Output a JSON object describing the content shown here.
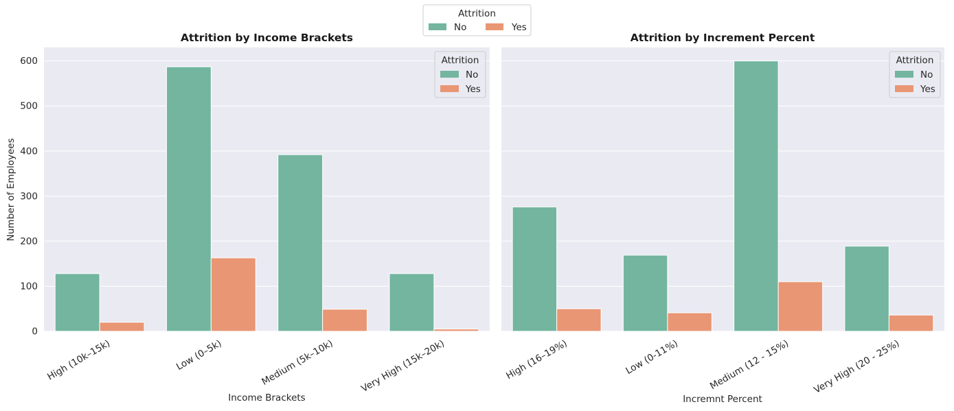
{
  "figure_legend": {
    "title": "Attrition",
    "entries": [
      "No",
      "Yes"
    ]
  },
  "colors": {
    "No": "#73b59f",
    "Yes": "#e99674",
    "plot_bg": "#eaeaf2",
    "grid": "#ffffff"
  },
  "chart_data": [
    {
      "type": "bar",
      "title": "Attrition by Income Brackets",
      "xlabel": "Income Brackets",
      "ylabel": "Number of Employees",
      "categories": [
        "High (10k–15k)",
        "Low (0–5k)",
        "Medium (5k–10k)",
        "Very High (15k–20k)"
      ],
      "series": [
        {
          "name": "No",
          "values": [
            128,
            587,
            392,
            128
          ]
        },
        {
          "name": "Yes",
          "values": [
            20,
            163,
            49,
            5
          ]
        }
      ],
      "ylim": [
        0,
        630
      ],
      "yticks": [
        0,
        100,
        200,
        300,
        400,
        500,
        600
      ],
      "grid": true,
      "legend": {
        "title": "Attrition",
        "placement": "top-right"
      }
    },
    {
      "type": "bar",
      "title": "Attrition by Increment Percent",
      "xlabel": "Incremnt Percent",
      "ylabel": "",
      "categories": [
        "High (16–19%)",
        "Low (0-11%)",
        "Medium (12 - 15%)",
        "Very High (20 - 25%)"
      ],
      "series": [
        {
          "name": "No",
          "values": [
            276,
            169,
            600,
            189
          ]
        },
        {
          "name": "Yes",
          "values": [
            50,
            41,
            110,
            36
          ]
        }
      ],
      "ylim": [
        0,
        630
      ],
      "yticks": [
        0,
        100,
        200,
        300,
        400,
        500,
        600
      ],
      "grid": true,
      "legend": {
        "title": "Attrition",
        "placement": "top-right"
      }
    }
  ]
}
